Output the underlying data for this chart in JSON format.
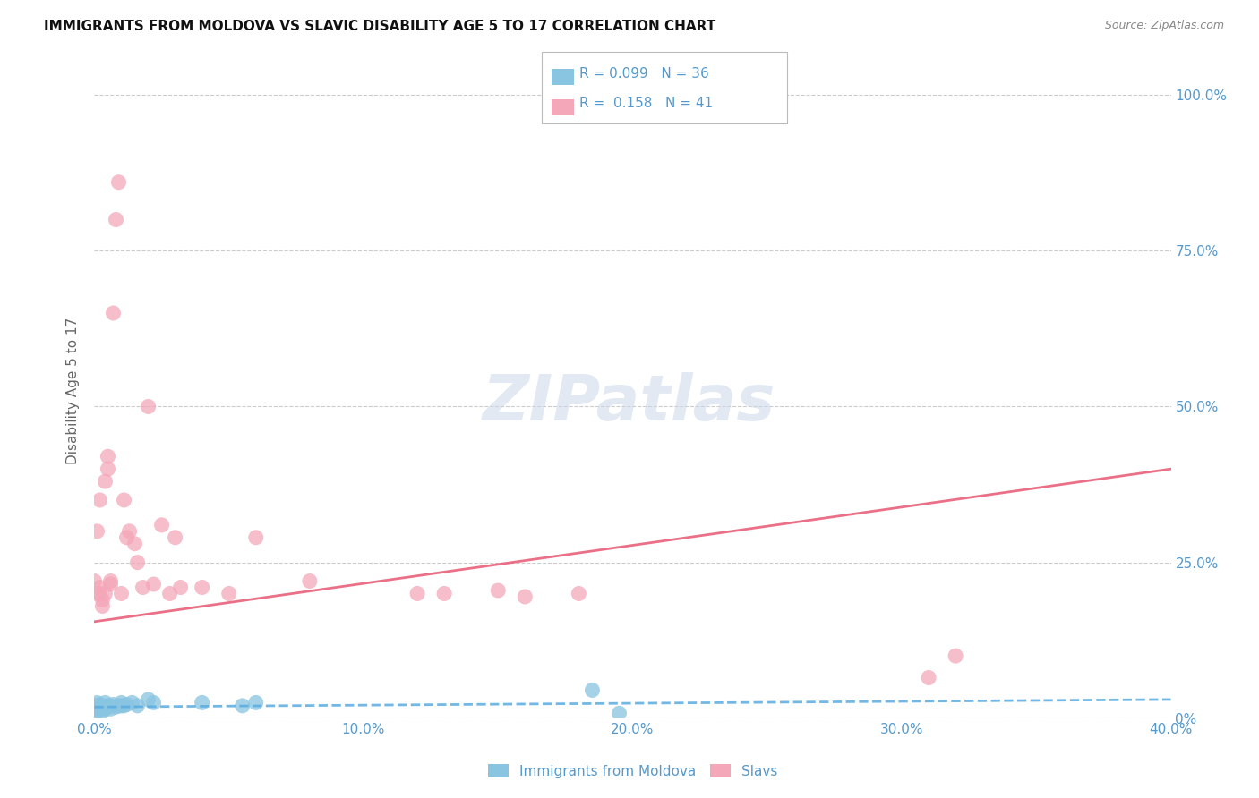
{
  "title": "IMMIGRANTS FROM MOLDOVA VS SLAVIC DISABILITY AGE 5 TO 17 CORRELATION CHART",
  "source": "Source: ZipAtlas.com",
  "ylabel_left": "Disability Age 5 to 17",
  "legend_label1": "Immigrants from Moldova",
  "legend_label2": "Slavs",
  "R1": 0.099,
  "N1": 36,
  "R2": 0.158,
  "N2": 41,
  "xlim": [
    0.0,
    0.4
  ],
  "ylim": [
    0.0,
    1.05
  ],
  "xtick_labels": [
    "0.0%",
    "10.0%",
    "20.0%",
    "30.0%",
    "40.0%"
  ],
  "xtick_values": [
    0.0,
    0.1,
    0.2,
    0.3,
    0.4
  ],
  "ytick_labels_right": [
    "0%",
    "25.0%",
    "50.0%",
    "75.0%",
    "100.0%"
  ],
  "ytick_values": [
    0.0,
    0.25,
    0.5,
    0.75,
    1.0
  ],
  "color_blue": "#89c4e1",
  "color_pink": "#f4a7b9",
  "color_blue_line": "#5aace0",
  "color_pink_line": "#e8607a",
  "color_text": "#5599cc",
  "background": "#ffffff",
  "moldova_points_x": [
    0.0,
    0.001,
    0.001,
    0.001,
    0.001,
    0.001,
    0.002,
    0.002,
    0.002,
    0.002,
    0.003,
    0.003,
    0.003,
    0.004,
    0.004,
    0.004,
    0.005,
    0.005,
    0.006,
    0.006,
    0.007,
    0.008,
    0.009,
    0.01,
    0.01,
    0.011,
    0.012,
    0.014,
    0.016,
    0.02,
    0.022,
    0.04,
    0.055,
    0.06,
    0.185,
    0.195
  ],
  "moldova_points_y": [
    0.02,
    0.018,
    0.015,
    0.025,
    0.01,
    0.012,
    0.022,
    0.018,
    0.015,
    0.02,
    0.015,
    0.02,
    0.01,
    0.025,
    0.015,
    0.018,
    0.02,
    0.018,
    0.02,
    0.015,
    0.022,
    0.018,
    0.02,
    0.025,
    0.02,
    0.02,
    0.022,
    0.025,
    0.02,
    0.03,
    0.025,
    0.025,
    0.02,
    0.025,
    0.045,
    0.008
  ],
  "slavs_points_x": [
    0.0,
    0.001,
    0.001,
    0.002,
    0.002,
    0.002,
    0.003,
    0.003,
    0.004,
    0.004,
    0.005,
    0.005,
    0.006,
    0.006,
    0.007,
    0.008,
    0.009,
    0.01,
    0.011,
    0.012,
    0.013,
    0.015,
    0.016,
    0.018,
    0.02,
    0.022,
    0.025,
    0.028,
    0.03,
    0.032,
    0.04,
    0.05,
    0.06,
    0.08,
    0.12,
    0.13,
    0.15,
    0.16,
    0.18,
    0.31,
    0.32
  ],
  "slavs_points_y": [
    0.22,
    0.2,
    0.3,
    0.2,
    0.21,
    0.35,
    0.19,
    0.18,
    0.38,
    0.2,
    0.4,
    0.42,
    0.22,
    0.215,
    0.65,
    0.8,
    0.86,
    0.2,
    0.35,
    0.29,
    0.3,
    0.28,
    0.25,
    0.21,
    0.5,
    0.215,
    0.31,
    0.2,
    0.29,
    0.21,
    0.21,
    0.2,
    0.29,
    0.22,
    0.2,
    0.2,
    0.205,
    0.195,
    0.2,
    0.065,
    0.1
  ],
  "moldova_line_x": [
    0.0,
    0.4
  ],
  "moldova_line_y": [
    0.018,
    0.03
  ],
  "slavs_line_x": [
    0.0,
    0.4
  ],
  "slavs_line_y": [
    0.155,
    0.4
  ]
}
